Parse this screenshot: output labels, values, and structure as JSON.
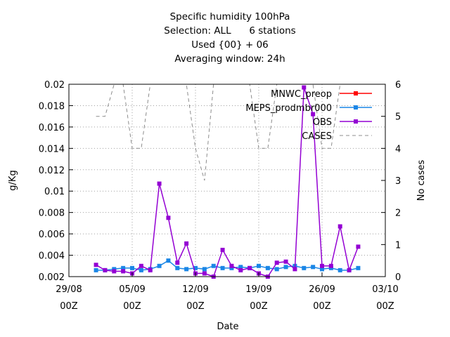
{
  "chart_data": {
    "type": "line",
    "title": "Specific humidity 100hPa",
    "subtitle_lines": [
      "Selection: ALL      6 stations",
      "Used {00} + 06",
      "Averaging window: 24h"
    ],
    "xlabel": "Date",
    "ylabel": "g/Kg",
    "y2label": "No cases",
    "x_ticks": [
      {
        "date": "2023-08-29",
        "line1": "29/08",
        "line2": "00Z"
      },
      {
        "date": "2023-09-05",
        "line1": "05/09",
        "line2": "00Z"
      },
      {
        "date": "2023-09-12",
        "line1": "12/09",
        "line2": "00Z"
      },
      {
        "date": "2023-09-19",
        "line1": "19/09",
        "line2": "00Z"
      },
      {
        "date": "2023-09-26",
        "line1": "26/09",
        "line2": "00Z"
      },
      {
        "date": "2023-10-03",
        "line1": "03/10",
        "line2": "00Z"
      }
    ],
    "xlim": [
      "2023-08-29",
      "2023-10-03"
    ],
    "ylim": [
      0.002,
      0.02
    ],
    "y_ticks": [
      "0.002",
      "0.004",
      "0.006",
      "0.008",
      "0.01",
      "0.012",
      "0.014",
      "0.016",
      "0.018",
      "0.02"
    ],
    "y2lim": [
      0,
      6
    ],
    "y2_ticks": [
      "0",
      "1",
      "2",
      "3",
      "4",
      "5",
      "6"
    ],
    "grid": true,
    "legend_position": "top-right",
    "series": [
      {
        "name": "MNWC_preop",
        "color": "#ff0000",
        "axis": "y",
        "marker": "square",
        "x": [],
        "values": []
      },
      {
        "name": "MEPS_prodmbr000",
        "color": "#1a86e6",
        "axis": "y",
        "marker": "square",
        "x": [
          "2023-09-01",
          "2023-09-02",
          "2023-09-03",
          "2023-09-04",
          "2023-09-05",
          "2023-09-06",
          "2023-09-07",
          "2023-09-08",
          "2023-09-09",
          "2023-09-10",
          "2023-09-11",
          "2023-09-12",
          "2023-09-13",
          "2023-09-14",
          "2023-09-15",
          "2023-09-16",
          "2023-09-17",
          "2023-09-18",
          "2023-09-19",
          "2023-09-20",
          "2023-09-21",
          "2023-09-22",
          "2023-09-23",
          "2023-09-24",
          "2023-09-25",
          "2023-09-26",
          "2023-09-27",
          "2023-09-28",
          "2023-09-29",
          "2023-09-30"
        ],
        "values": [
          0.0026,
          0.0026,
          0.0027,
          0.0028,
          0.0028,
          0.0026,
          0.0027,
          0.003,
          0.0035,
          0.0028,
          0.0027,
          0.0028,
          0.0027,
          0.003,
          0.0028,
          0.0028,
          0.0029,
          0.0028,
          0.003,
          0.0028,
          0.0027,
          0.0029,
          0.003,
          0.0028,
          0.0029,
          0.0027,
          0.0028,
          0.0026,
          0.0026,
          0.0028
        ]
      },
      {
        "name": "OBS",
        "color": "#9400d3",
        "axis": "y",
        "marker": "square",
        "x": [
          "2023-09-01",
          "2023-09-02",
          "2023-09-03",
          "2023-09-04",
          "2023-09-05",
          "2023-09-06",
          "2023-09-07",
          "2023-09-08",
          "2023-09-09",
          "2023-09-10",
          "2023-09-11",
          "2023-09-12",
          "2023-09-13",
          "2023-09-14",
          "2023-09-15",
          "2023-09-16",
          "2023-09-17",
          "2023-09-18",
          "2023-09-19",
          "2023-09-20",
          "2023-09-21",
          "2023-09-22",
          "2023-09-23",
          "2023-09-24",
          "2023-09-25",
          "2023-09-26",
          "2023-09-27",
          "2023-09-28",
          "2023-09-29",
          "2023-09-30"
        ],
        "values": [
          0.0031,
          0.0026,
          0.0025,
          0.0025,
          0.0023,
          0.003,
          0.0026,
          0.0107,
          0.0075,
          0.0033,
          0.0051,
          0.0023,
          0.0023,
          0.002,
          0.0045,
          0.003,
          0.0026,
          0.0028,
          0.0023,
          0.002,
          0.0033,
          0.0034,
          0.0027,
          0.0197,
          0.0172,
          0.003,
          0.003,
          0.0067,
          0.0026,
          0.0048
        ]
      },
      {
        "name": "CASES",
        "color": "#8c8c8c",
        "axis": "y2",
        "marker": "none",
        "dashed": true,
        "x": [
          "2023-09-01",
          "2023-09-02",
          "2023-09-03",
          "2023-09-04",
          "2023-09-05",
          "2023-09-06",
          "2023-09-07",
          "2023-09-08",
          "2023-09-09",
          "2023-09-10",
          "2023-09-11",
          "2023-09-12",
          "2023-09-13",
          "2023-09-14",
          "2023-09-15",
          "2023-09-16",
          "2023-09-17",
          "2023-09-18",
          "2023-09-19",
          "2023-09-20",
          "2023-09-21",
          "2023-09-22",
          "2023-09-23",
          "2023-09-24",
          "2023-09-25",
          "2023-09-26",
          "2023-09-27",
          "2023-09-28",
          "2023-09-29",
          "2023-09-30"
        ],
        "values": [
          5,
          5,
          6,
          6,
          4,
          4,
          6,
          6,
          6,
          6,
          6,
          4,
          3,
          6,
          6,
          6,
          6,
          6,
          4,
          4,
          6,
          6,
          6,
          6,
          6,
          4,
          4,
          6,
          6,
          6
        ]
      }
    ]
  }
}
